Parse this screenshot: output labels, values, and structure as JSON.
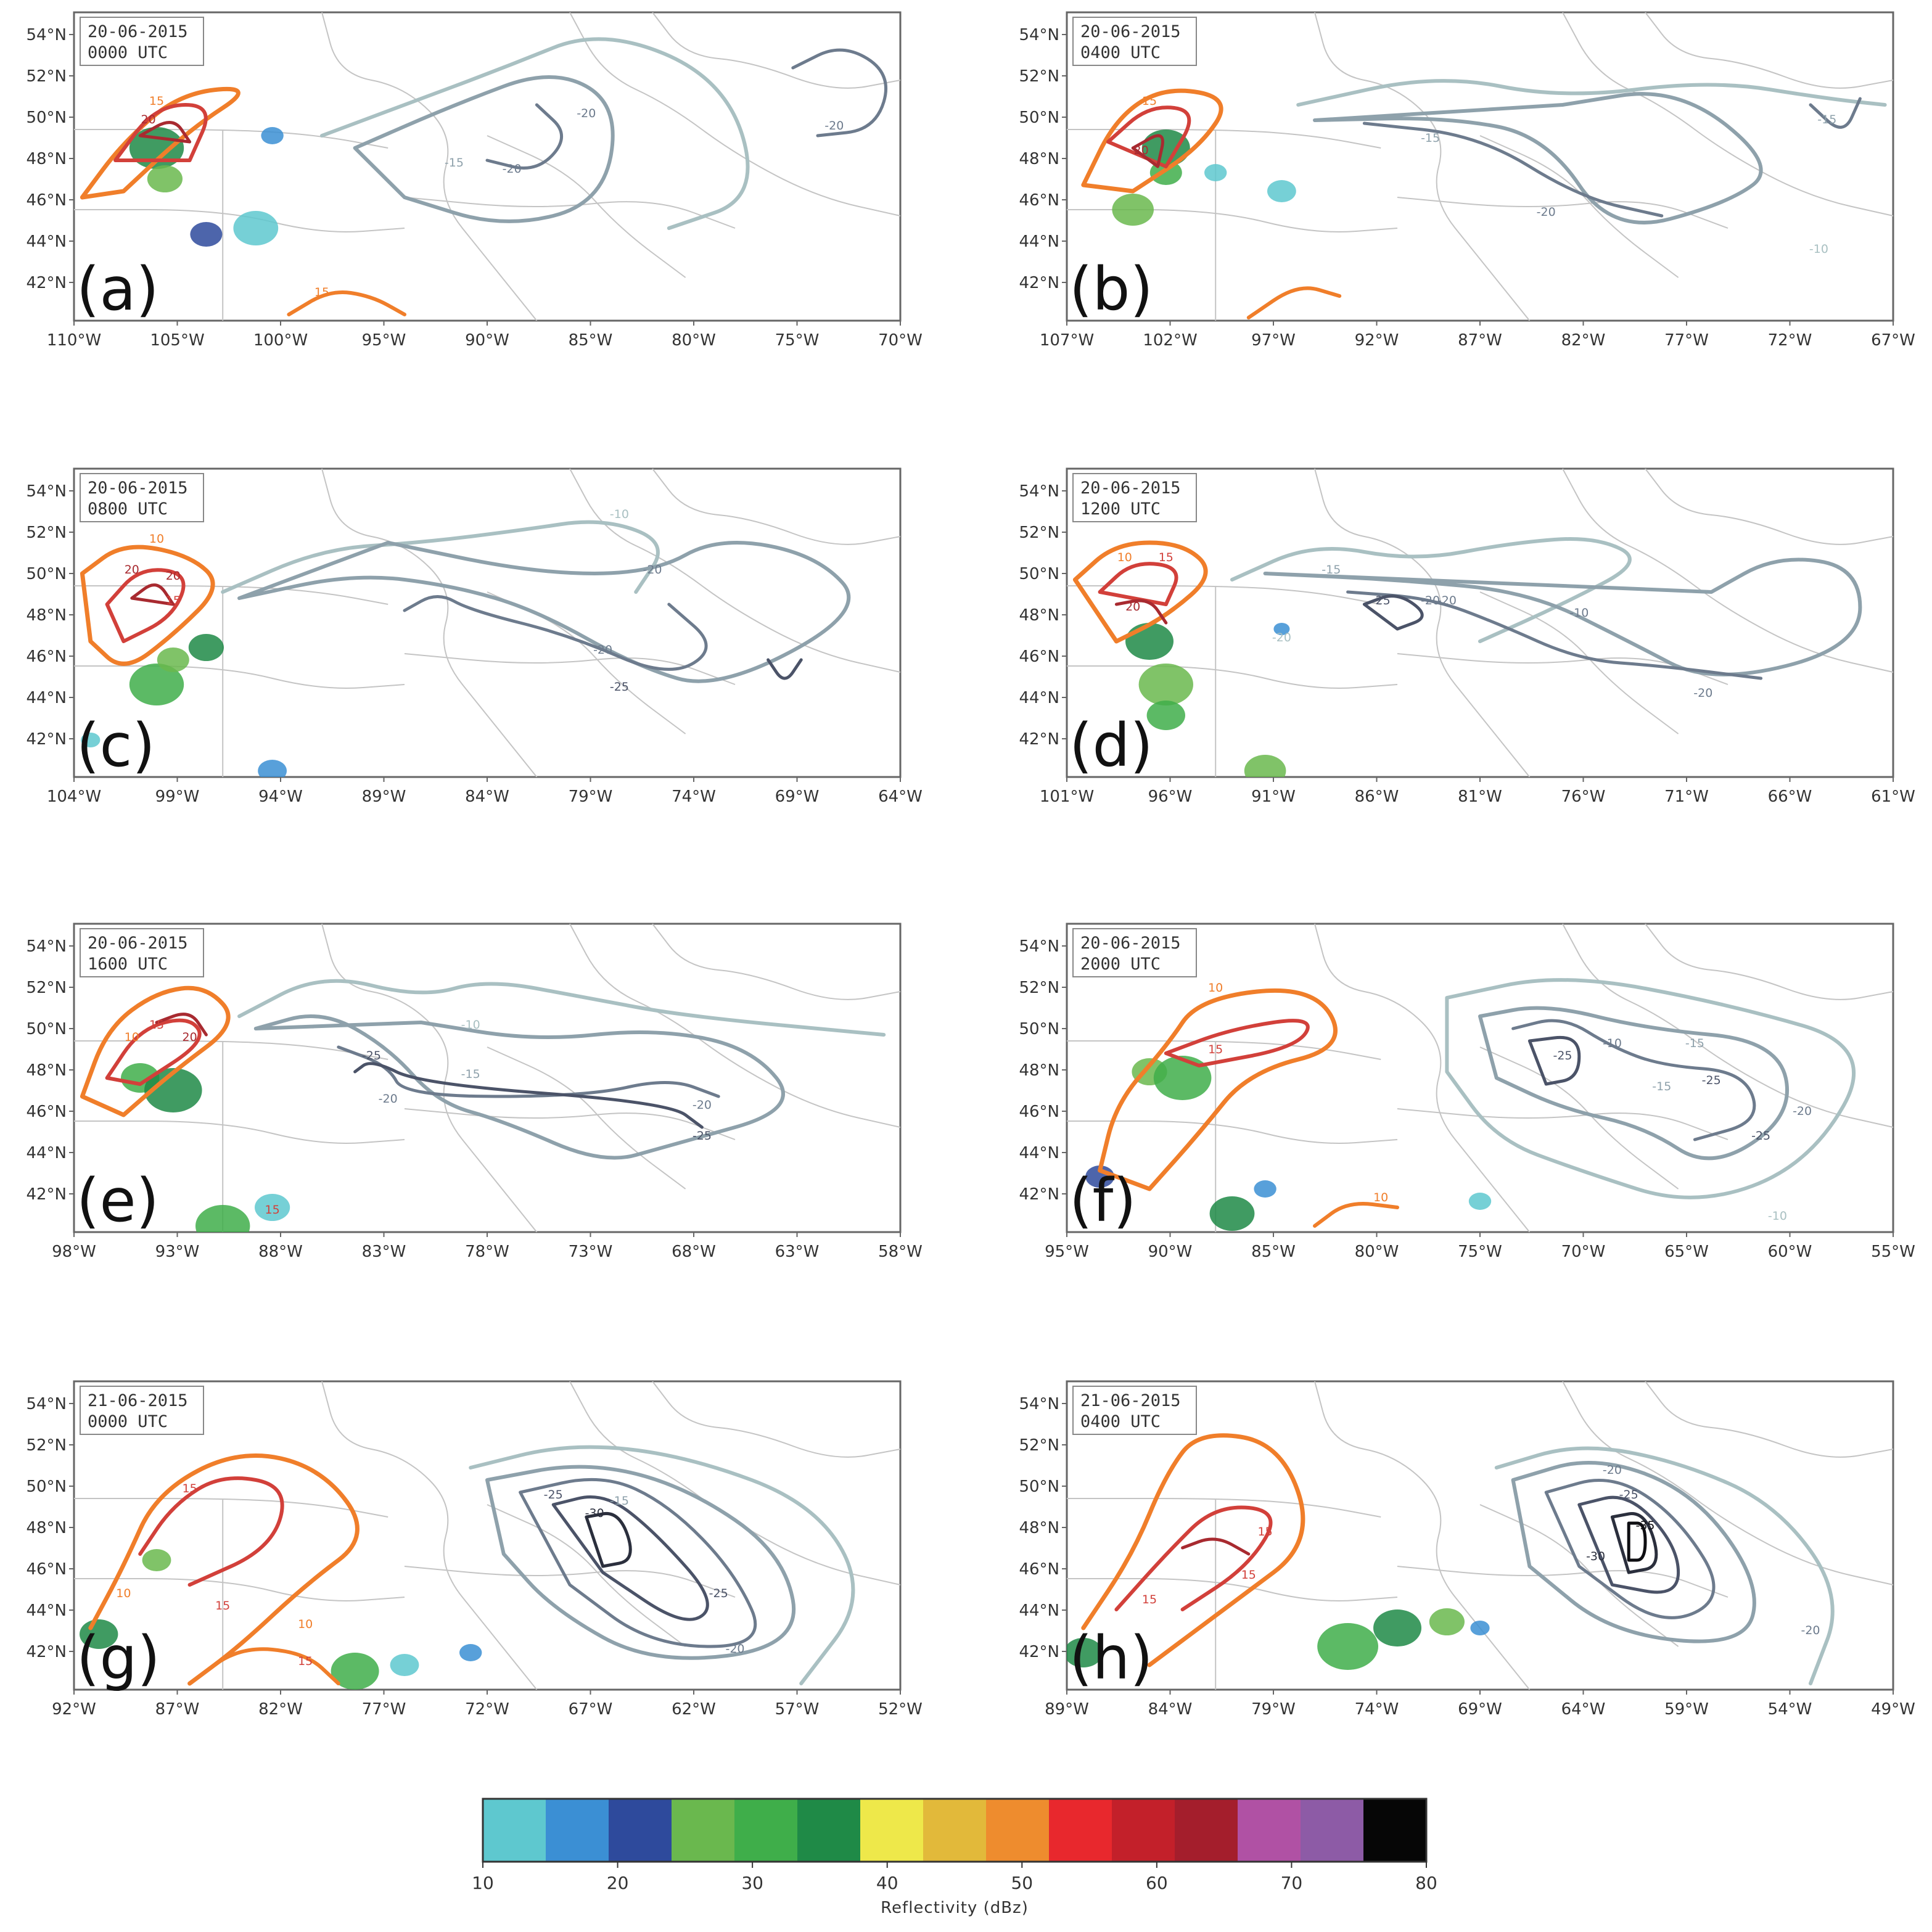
{
  "y_ticks": [
    "54°N",
    "52°N",
    "50°N",
    "48°N",
    "46°N",
    "44°N",
    "42°N"
  ],
  "panels": [
    {
      "letter": "(a)",
      "date": "20-06-2015",
      "time": "0000 UTC",
      "x_ticks": [
        "110°W",
        "105°W",
        "100°W",
        "95°W",
        "90°W",
        "85°W",
        "80°W",
        "75°W",
        "70°W"
      ],
      "contour_labels": [
        "15",
        "20",
        "15",
        "-15",
        "-20",
        "-20",
        "-20"
      ]
    },
    {
      "letter": "(b)",
      "date": "20-06-2015",
      "time": "0400 UTC",
      "x_ticks": [
        "107°W",
        "102°W",
        "97°W",
        "92°W",
        "87°W",
        "82°W",
        "77°W",
        "72°W",
        "67°W"
      ],
      "contour_labels": [
        "15",
        "20",
        "-15",
        "-20",
        "-15",
        "-10"
      ]
    },
    {
      "letter": "(c)",
      "date": "20-06-2015",
      "time": "0800 UTC",
      "x_ticks": [
        "104°W",
        "99°W",
        "94°W",
        "89°W",
        "84°W",
        "79°W",
        "74°W",
        "69°W",
        "64°W"
      ],
      "contour_labels": [
        "10",
        "20",
        "20",
        "15",
        "-10",
        "-20",
        "-20",
        "-25"
      ]
    },
    {
      "letter": "(d)",
      "date": "20-06-2015",
      "time": "1200 UTC",
      "x_ticks": [
        "101°W",
        "96°W",
        "91°W",
        "86°W",
        "81°W",
        "76°W",
        "71°W",
        "66°W",
        "61°W"
      ],
      "contour_labels": [
        "10",
        "15",
        "20",
        "-20",
        "-15",
        "-25",
        "-20",
        "-10",
        "-20",
        "-20"
      ]
    },
    {
      "letter": "(e)",
      "date": "20-06-2015",
      "time": "1600 UTC",
      "x_ticks": [
        "98°W",
        "93°W",
        "88°W",
        "83°W",
        "78°W",
        "73°W",
        "68°W",
        "63°W",
        "58°W"
      ],
      "contour_labels": [
        "10",
        "15",
        "20",
        "-10",
        "-25",
        "-20",
        "-15",
        "-20",
        "-25",
        "15"
      ]
    },
    {
      "letter": "(f)",
      "date": "20-06-2015",
      "time": "2000 UTC",
      "x_ticks": [
        "95°W",
        "90°W",
        "85°W",
        "80°W",
        "75°W",
        "70°W",
        "65°W",
        "60°W",
        "55°W"
      ],
      "contour_labels": [
        "10",
        "15",
        "-25",
        "-15",
        "-25",
        "-15",
        "-20",
        "-25",
        "-10",
        "10",
        "-10"
      ]
    },
    {
      "letter": "(g)",
      "date": "21-06-2015",
      "time": "0000 UTC",
      "x_ticks": [
        "92°W",
        "87°W",
        "82°W",
        "77°W",
        "72°W",
        "67°W",
        "62°W",
        "57°W",
        "52°W"
      ],
      "contour_labels": [
        "15",
        "15",
        "10",
        "10",
        "15",
        "-25",
        "-30",
        "-15",
        "-25",
        "-20"
      ]
    },
    {
      "letter": "(h)",
      "date": "21-06-2015",
      "time": "0400 UTC",
      "x_ticks": [
        "89°W",
        "84°W",
        "79°W",
        "74°W",
        "69°W",
        "64°W",
        "59°W",
        "54°W",
        "49°W"
      ],
      "contour_labels": [
        "15",
        "15",
        "15",
        "-20",
        "-25",
        "-35",
        "-30",
        "-20"
      ]
    }
  ],
  "colorbar": {
    "title": "Reflectivity (dBz)",
    "ticks": [
      "10",
      "20",
      "30",
      "40",
      "50",
      "60",
      "70",
      "80"
    ],
    "colors": [
      "#5ec8cf",
      "#3b8fd4",
      "#2e4a9c",
      "#6ab84e",
      "#3fae4a",
      "#1f8a47",
      "#eee84a",
      "#e2b93a",
      "#ee8c2e",
      "#e8282d",
      "#c3202a",
      "#a41e2c",
      "#b051a4",
      "#8d5ba6",
      "#060606"
    ]
  },
  "contour_colors": {
    "p10": "#f07e2a",
    "p15": "#d2403a",
    "p20": "#a82a30",
    "m10": "#a9c0c2",
    "m15": "#8ea1ab",
    "m20": "#6d7b8d",
    "m25": "#4b5368",
    "m30": "#2b2f3d",
    "m35": "#0e0e12"
  }
}
